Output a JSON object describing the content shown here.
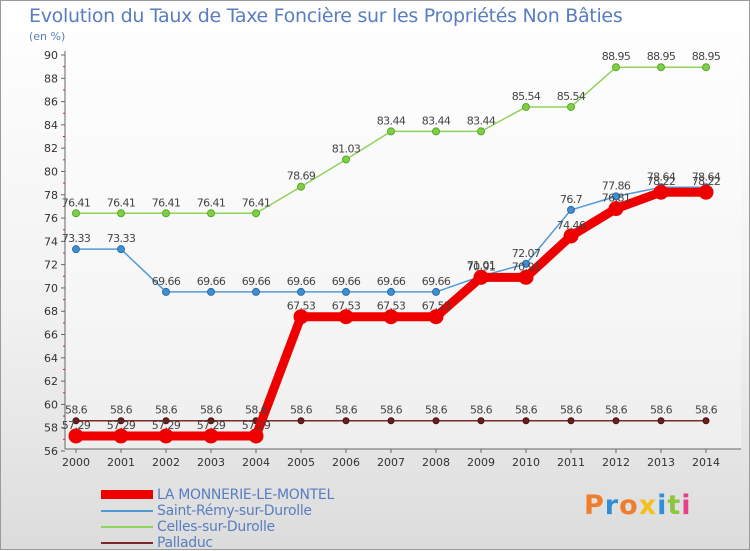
{
  "title": "Evolution du Taux de Taxe Foncière sur les Propriétés Non Bâties",
  "subtitle": "(en %)",
  "logo": {
    "text": "Proxiti",
    "colors": [
      "#f07d2d",
      "#2e8fd6",
      "#f07d2d",
      "#f4c020",
      "#2e8fd6",
      "#8cc63e",
      "#e83e8c"
    ]
  },
  "chart_data": {
    "type": "line",
    "title": "Evolution du Taux de Taxe Foncière sur les Propriétés Non Bâties",
    "ylabel": "(en %)",
    "xlabel": "",
    "x": [
      2000,
      2001,
      2002,
      2003,
      2004,
      2005,
      2006,
      2007,
      2008,
      2009,
      2010,
      2011,
      2012,
      2013,
      2014
    ],
    "ylim": [
      56,
      90
    ],
    "yticks": [
      56,
      58,
      60,
      62,
      64,
      66,
      68,
      70,
      72,
      74,
      76,
      78,
      80,
      82,
      84,
      86,
      88,
      90
    ],
    "grid": false,
    "legend_position": "bottom-left",
    "series": [
      {
        "name": "LA MONNERIE-LE-MONTEL",
        "color": "#ee0000",
        "values": [
          57.29,
          57.29,
          57.29,
          57.29,
          57.29,
          67.53,
          67.53,
          67.53,
          67.53,
          70.91,
          70.91,
          74.46,
          76.81,
          78.22,
          78.22
        ],
        "labels": [
          "57.29",
          "57.29",
          "57.29",
          "57.29",
          "57.29",
          "67.53",
          "67.53",
          "67.53",
          "67.53",
          "70.91",
          "70.91",
          "74.46",
          "76.81",
          "78.22",
          "78.22"
        ]
      },
      {
        "name": "Saint-Rémy-sur-Durolle",
        "color": "#4f9ad6",
        "values": [
          73.33,
          73.33,
          69.66,
          69.66,
          69.66,
          69.66,
          69.66,
          69.66,
          69.66,
          71.01,
          72.07,
          76.7,
          77.86,
          78.64,
          78.64
        ],
        "labels": [
          "73.33",
          "73.33",
          "69.66",
          "69.66",
          "69.66",
          "69.66",
          "69.66",
          "69.66",
          "69.66",
          "71.01",
          "72.07",
          "76.7",
          "77.86",
          "78.64",
          "78.64"
        ]
      },
      {
        "name": "Celles-sur-Durolle",
        "color": "#8ed35b",
        "values": [
          76.41,
          76.41,
          76.41,
          76.41,
          76.41,
          78.69,
          81.03,
          83.44,
          83.44,
          83.44,
          85.54,
          85.54,
          88.95,
          88.95,
          88.95
        ],
        "labels": [
          "76.41",
          "76.41",
          "76.41",
          "76.41",
          "76.41",
          "78.69",
          "81.03",
          "83.44",
          "83.44",
          "83.44",
          "85.54",
          "85.54",
          "88.95",
          "88.95",
          "88.95"
        ]
      },
      {
        "name": "Palladuc",
        "color": "#7a2a2a",
        "values": [
          58.6,
          58.6,
          58.6,
          58.6,
          58.6,
          58.6,
          58.6,
          58.6,
          58.6,
          58.6,
          58.6,
          58.6,
          58.6,
          58.6,
          58.6
        ],
        "labels": [
          "58.6",
          "58.6",
          "58.6",
          "58.6",
          "58.6",
          "58.6",
          "58.6",
          "58.6",
          "58.6",
          "58.6",
          "58.6",
          "58.6",
          "58.6",
          "58.6",
          "58.6"
        ]
      }
    ]
  }
}
